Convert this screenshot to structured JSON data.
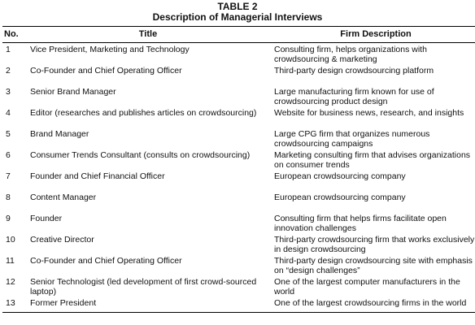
{
  "caption": {
    "label": "TABLE 2",
    "title": "Description of Managerial Interviews"
  },
  "table": {
    "headers": [
      "No.",
      "Title",
      "Firm Description"
    ],
    "rows": [
      {
        "no": "1",
        "title": "Vice President, Marketing and Technology",
        "firm": "Consulting firm, helps organizations with crowdsourcing & marketing"
      },
      {
        "no": "2",
        "title": "Co-Founder and Chief Operating Officer",
        "firm": "Third-party design crowdsourcing platform"
      },
      {
        "no": "3",
        "title": "Senior Brand Manager",
        "firm": "Large manufacturing firm known for use of crowdsourcing product design"
      },
      {
        "no": "4",
        "title": "Editor (researches and publishes articles on crowdsourcing)",
        "firm": "Website for business news, research, and insights"
      },
      {
        "no": "5",
        "title": "Brand Manager",
        "firm": "Large CPG firm that organizes numerous crowdsourcing campaigns"
      },
      {
        "no": "6",
        "title": "Consumer Trends Consultant (consults on crowdsourcing)",
        "firm": "Marketing consulting firm that advises organizations on consumer trends"
      },
      {
        "no": "7",
        "title": "Founder and Chief Financial Officer",
        "firm": "European crowdsourcing company"
      },
      {
        "no": "8",
        "title": "Content Manager",
        "firm": "European crowdsourcing company"
      },
      {
        "no": "9",
        "title": "Founder",
        "firm": "Consulting firm that helps firms facilitate open innovation challenges"
      },
      {
        "no": "10",
        "title": "Creative Director",
        "firm": "Third-party crowdsourcing firm that works exclusively in design crowdsourcing"
      },
      {
        "no": "11",
        "title": "Co-Founder and Chief Operating Officer",
        "firm": "Third-party design crowdsourcing site with emphasis on “design challenges”"
      },
      {
        "no": "12",
        "title": "Senior Technologist (led development of first crowd-sourced laptop)",
        "firm": "One of the largest computer manufacturers in the world"
      },
      {
        "no": "13",
        "title": "Former President",
        "firm": "One of the largest crowdsourcing firms in the world"
      }
    ]
  }
}
